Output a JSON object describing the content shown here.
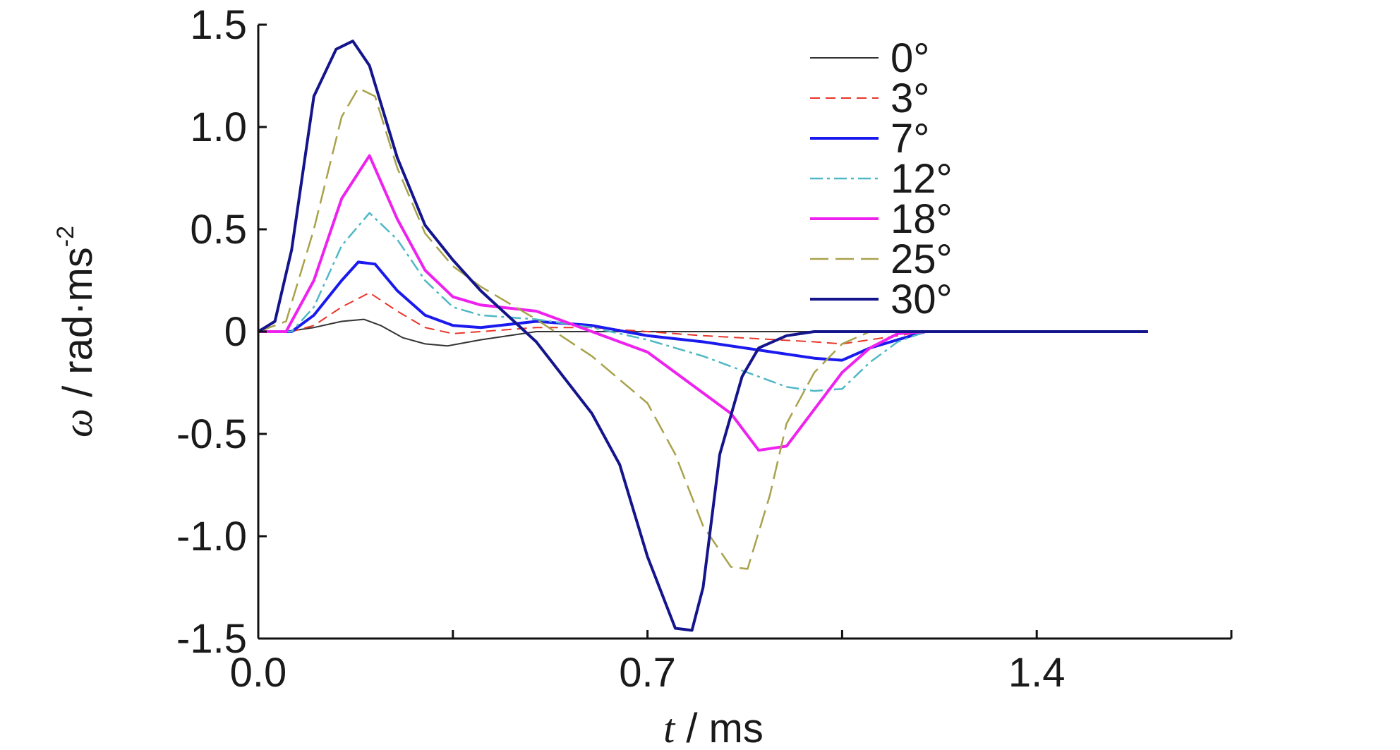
{
  "chart_data": {
    "type": "line",
    "title": "",
    "xlabel_var": "t",
    "xlabel_unit": " / ms",
    "ylabel_var": "ω",
    "ylabel_unit": " / rad·ms",
    "ylabel_sup": "-2",
    "xlim": [
      0.0,
      1.75
    ],
    "ylim": [
      -1.5,
      1.5
    ],
    "xticks": [
      0.0,
      0.35,
      0.7,
      1.05,
      1.4,
      1.75
    ],
    "xtick_labels": [
      "0.0",
      "",
      "0.7",
      "",
      "1.4",
      ""
    ],
    "yticks": [
      1.5,
      1.0,
      0.5,
      0,
      -0.5,
      -1.0,
      -1.5
    ],
    "ytick_labels": [
      "1.5",
      "1.0",
      "0.5",
      "0",
      "-0.5",
      "-1.0",
      "-1.5"
    ],
    "legend_position": "top-right",
    "series": [
      {
        "name": "0°",
        "color": "#333333",
        "dash": "none",
        "width": 2,
        "x": [
          0,
          0.05,
          0.1,
          0.15,
          0.19,
          0.22,
          0.26,
          0.3,
          0.34,
          0.4,
          0.5,
          0.6,
          0.8,
          1.0,
          1.2,
          1.4
        ],
        "y": [
          0,
          0,
          0.02,
          0.05,
          0.06,
          0.03,
          -0.03,
          -0.06,
          -0.07,
          -0.04,
          0.0,
          0.0,
          0.0,
          0.0,
          0.0,
          0.0
        ]
      },
      {
        "name": "3°",
        "color": "#e8352a",
        "dash": "14,8",
        "width": 2,
        "x": [
          0,
          0.06,
          0.1,
          0.15,
          0.2,
          0.25,
          0.3,
          0.35,
          0.4,
          0.5,
          0.6,
          0.8,
          1.0,
          1.05,
          1.1,
          1.2,
          1.4
        ],
        "y": [
          0,
          0,
          0.03,
          0.12,
          0.19,
          0.1,
          0.02,
          -0.01,
          0.0,
          0.02,
          0.02,
          -0.02,
          -0.05,
          -0.06,
          -0.04,
          0.0,
          0.0
        ]
      },
      {
        "name": "7°",
        "color": "#1a1aee",
        "dash": "none",
        "width": 4,
        "x": [
          0,
          0.06,
          0.1,
          0.15,
          0.18,
          0.21,
          0.25,
          0.3,
          0.35,
          0.4,
          0.5,
          0.6,
          0.7,
          0.8,
          0.9,
          1.0,
          1.05,
          1.1,
          1.2,
          1.4,
          1.6
        ],
        "y": [
          0,
          0,
          0.08,
          0.25,
          0.34,
          0.33,
          0.2,
          0.08,
          0.03,
          0.02,
          0.05,
          0.03,
          -0.02,
          -0.05,
          -0.09,
          -0.13,
          -0.14,
          -0.08,
          0.0,
          0.0,
          0.0
        ]
      },
      {
        "name": "12°",
        "color": "#4fb8c4",
        "dash": "18,6,4,6",
        "width": 2.5,
        "x": [
          0,
          0.06,
          0.1,
          0.15,
          0.2,
          0.25,
          0.3,
          0.35,
          0.4,
          0.5,
          0.6,
          0.7,
          0.8,
          0.9,
          0.95,
          1.0,
          1.05,
          1.1,
          1.15,
          1.2,
          1.4
        ],
        "y": [
          0,
          0,
          0.12,
          0.42,
          0.58,
          0.45,
          0.25,
          0.12,
          0.08,
          0.06,
          0.02,
          -0.04,
          -0.12,
          -0.22,
          -0.27,
          -0.29,
          -0.28,
          -0.15,
          -0.05,
          0.0,
          0.0
        ]
      },
      {
        "name": "18°",
        "color": "#ee22ee",
        "dash": "none",
        "width": 4,
        "x": [
          0,
          0.05,
          0.1,
          0.15,
          0.2,
          0.25,
          0.3,
          0.35,
          0.4,
          0.5,
          0.6,
          0.7,
          0.75,
          0.8,
          0.85,
          0.9,
          0.95,
          1.0,
          1.05,
          1.1,
          1.15,
          1.2,
          1.4
        ],
        "y": [
          0,
          0,
          0.25,
          0.65,
          0.86,
          0.55,
          0.3,
          0.17,
          0.13,
          0.1,
          0.0,
          -0.1,
          -0.2,
          -0.3,
          -0.4,
          -0.58,
          -0.56,
          -0.38,
          -0.2,
          -0.08,
          -0.01,
          0.0,
          0.0
        ]
      },
      {
        "name": "25°",
        "color": "#a8a24a",
        "dash": "26,10",
        "width": 2.5,
        "x": [
          0,
          0.05,
          0.1,
          0.15,
          0.18,
          0.21,
          0.25,
          0.3,
          0.35,
          0.4,
          0.5,
          0.6,
          0.7,
          0.75,
          0.8,
          0.85,
          0.88,
          0.92,
          0.95,
          1.0,
          1.05,
          1.1,
          1.2,
          1.4
        ],
        "y": [
          0,
          0.05,
          0.5,
          1.05,
          1.19,
          1.15,
          0.8,
          0.48,
          0.32,
          0.22,
          0.06,
          -0.12,
          -0.35,
          -0.6,
          -0.95,
          -1.15,
          -1.16,
          -0.8,
          -0.45,
          -0.2,
          -0.06,
          0.0,
          0.0,
          0.0
        ]
      },
      {
        "name": "30°",
        "color": "#14148c",
        "dash": "none",
        "width": 4,
        "x": [
          0,
          0.03,
          0.06,
          0.1,
          0.14,
          0.17,
          0.2,
          0.25,
          0.3,
          0.35,
          0.4,
          0.5,
          0.6,
          0.65,
          0.7,
          0.75,
          0.78,
          0.8,
          0.83,
          0.87,
          0.9,
          0.95,
          1.0,
          1.05,
          1.2,
          1.4,
          1.6
        ],
        "y": [
          0,
          0.05,
          0.4,
          1.15,
          1.38,
          1.42,
          1.3,
          0.85,
          0.52,
          0.35,
          0.2,
          -0.05,
          -0.4,
          -0.65,
          -1.1,
          -1.45,
          -1.46,
          -1.25,
          -0.6,
          -0.22,
          -0.08,
          -0.02,
          0.0,
          0.0,
          0.0,
          0.0,
          0.0
        ]
      }
    ]
  }
}
